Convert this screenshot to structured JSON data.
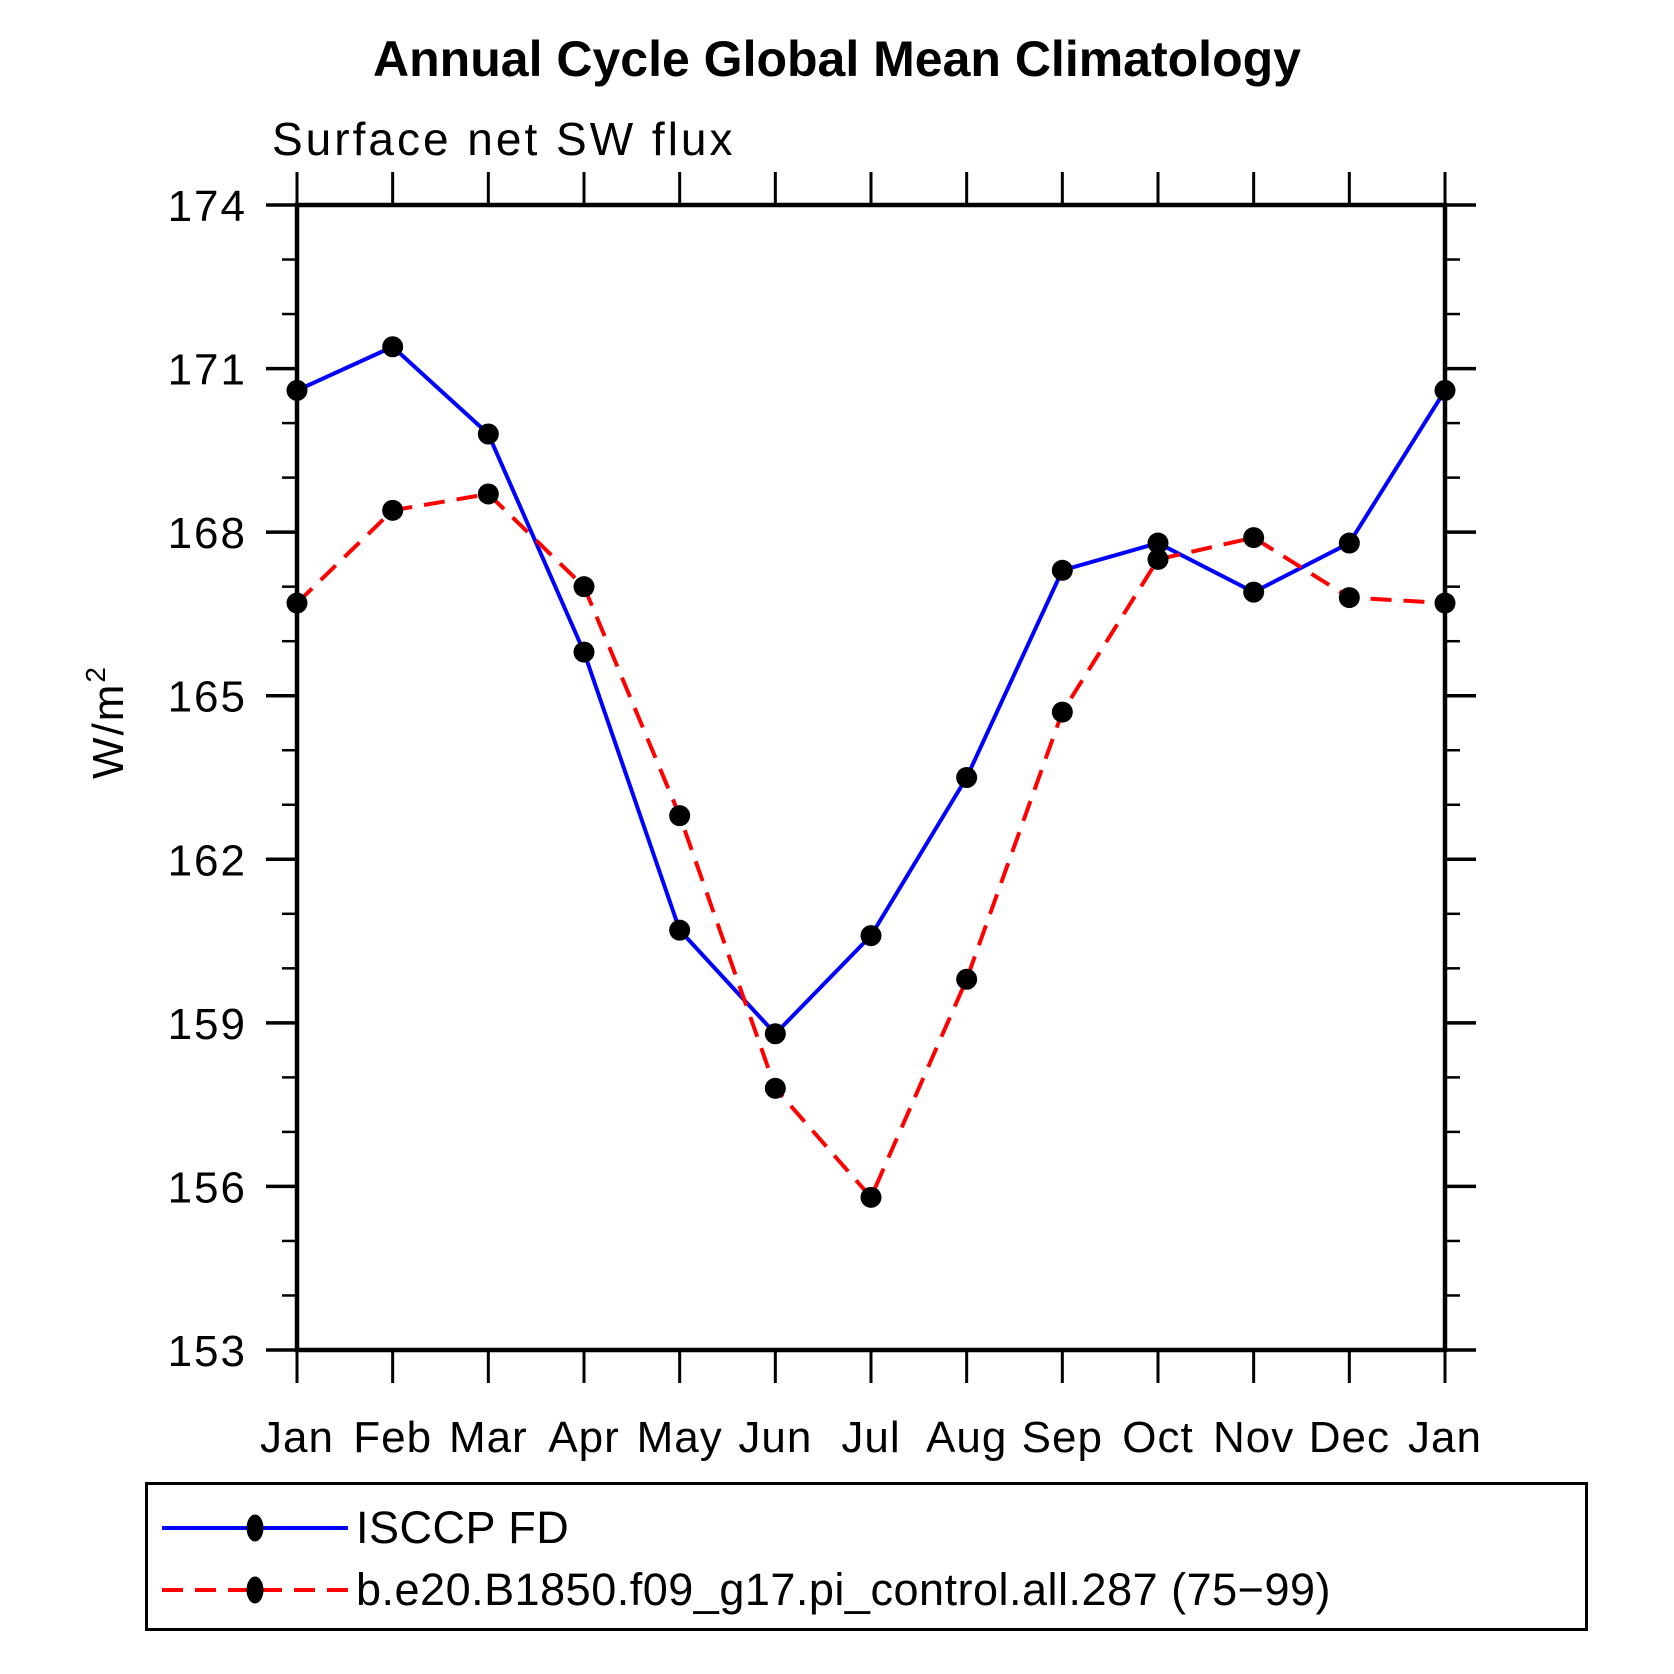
{
  "chart_data": {
    "type": "line",
    "title": "Annual Cycle Global Mean Climatology",
    "subtitle": "Surface net SW flux",
    "ylabel": "W/m²",
    "ylabel_base": "W/m",
    "ylabel_exponent": "2",
    "categories": [
      "Jan",
      "Feb",
      "Mar",
      "Apr",
      "May",
      "Jun",
      "Jul",
      "Aug",
      "Sep",
      "Oct",
      "Nov",
      "Dec",
      "Jan"
    ],
    "ylim": [
      153,
      174
    ],
    "ytick_major": [
      153,
      156,
      159,
      162,
      165,
      168,
      171,
      174
    ],
    "ytick_minor_interval": 1,
    "grid": false,
    "legend_position": "bottom-left-box",
    "axis_color": "#000000",
    "marker_color": "#000000",
    "series": [
      {
        "name": "ISCCP FD",
        "color": "#0000ff",
        "line_style": "solid",
        "marker": "filled-black-circle",
        "values": [
          170.6,
          171.4,
          169.8,
          165.8,
          160.7,
          158.8,
          160.6,
          163.5,
          167.3,
          167.8,
          166.9,
          167.8,
          170.6
        ]
      },
      {
        "name": "b.e20.B1850.f09_g17.pi_control.all.287 (75−99)",
        "color": "#ff0000",
        "line_style": "dashed",
        "marker": "filled-black-circle",
        "values": [
          166.7,
          168.4,
          168.7,
          167.0,
          162.8,
          157.8,
          155.8,
          159.8,
          164.7,
          167.5,
          167.9,
          166.8,
          166.7
        ]
      }
    ]
  }
}
